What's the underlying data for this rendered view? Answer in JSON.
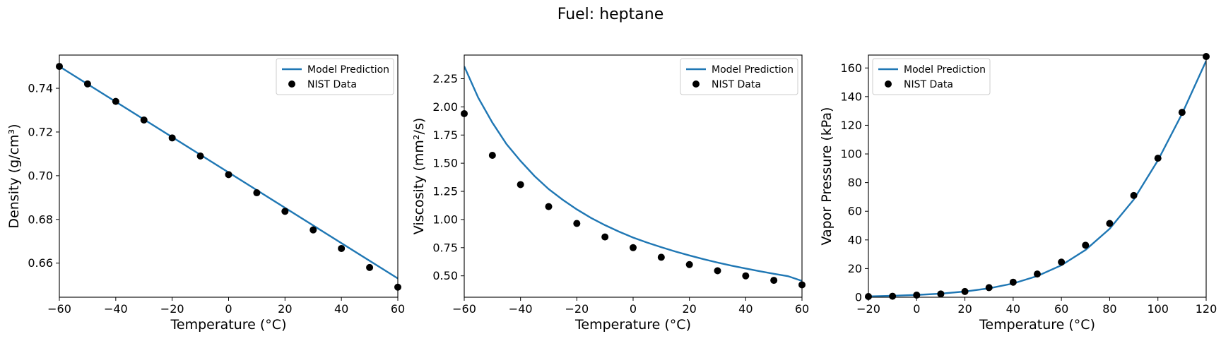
{
  "title": "Fuel: heptane",
  "chart_data": [
    {
      "type": "line",
      "xlabel": "Temperature (°C)",
      "ylabel": "Density (g/cm³)",
      "xlim": [
        -60,
        60
      ],
      "ylim": [
        0.6444,
        0.7552
      ],
      "xticks": [
        -60,
        -40,
        -20,
        0,
        20,
        40,
        60
      ],
      "yticks": [
        0.66,
        0.68,
        0.7,
        0.72,
        0.74
      ],
      "ytick_decimals": 2,
      "legend_position": "upper right",
      "grid": false,
      "series": [
        {
          "name": "Model Prediction",
          "kind": "line",
          "color": "#1f77b4",
          "x": [
            -60,
            60
          ],
          "y": [
            0.75,
            0.653
          ]
        },
        {
          "name": "NIST Data",
          "kind": "scatter",
          "color": "#000000",
          "x": [
            -60,
            -50,
            -40,
            -30,
            -20,
            -10,
            0,
            10,
            20,
            30,
            40,
            50,
            60
          ],
          "y": [
            0.75,
            0.742,
            0.734,
            0.7255,
            0.7173,
            0.709,
            0.7005,
            0.6922,
            0.6837,
            0.6752,
            0.6667,
            0.658,
            0.649
          ]
        }
      ]
    },
    {
      "type": "line",
      "xlabel": "Temperature (°C)",
      "ylabel": "Viscosity (mm²/s)",
      "xlim": [
        -60,
        60
      ],
      "ylim": [
        0.31,
        2.46
      ],
      "xticks": [
        -60,
        -40,
        -20,
        0,
        20,
        40,
        60
      ],
      "yticks": [
        0.5,
        0.75,
        1.0,
        1.25,
        1.5,
        1.75,
        2.0,
        2.25
      ],
      "ytick_decimals": 2,
      "legend_position": "upper right",
      "grid": false,
      "series": [
        {
          "name": "Model Prediction",
          "kind": "line",
          "color": "#1f77b4",
          "x": [
            -60,
            -55,
            -50,
            -45,
            -40,
            -35,
            -30,
            -25,
            -20,
            -15,
            -10,
            -5,
            0,
            5,
            10,
            15,
            20,
            25,
            30,
            35,
            40,
            45,
            50,
            55,
            60
          ],
          "y": [
            2.36,
            2.08,
            1.86,
            1.67,
            1.52,
            1.385,
            1.27,
            1.175,
            1.09,
            1.015,
            0.95,
            0.892,
            0.84,
            0.795,
            0.754,
            0.716,
            0.681,
            0.648,
            0.618,
            0.59,
            0.565,
            0.541,
            0.518,
            0.497,
            0.455
          ]
        },
        {
          "name": "NIST Data",
          "kind": "scatter",
          "color": "#000000",
          "x": [
            -60,
            -50,
            -40,
            -30,
            -20,
            -10,
            0,
            10,
            20,
            30,
            40,
            50,
            60
          ],
          "y": [
            1.94,
            1.57,
            1.31,
            1.115,
            0.965,
            0.845,
            0.75,
            0.665,
            0.6,
            0.545,
            0.5,
            0.46,
            0.42
          ]
        }
      ]
    },
    {
      "type": "line",
      "xlabel": "Temperature (°C)",
      "ylabel": "Vapor Pressure (kPa)",
      "xlim": [
        -20,
        120
      ],
      "ylim": [
        0,
        169
      ],
      "xticks": [
        -20,
        0,
        20,
        40,
        60,
        80,
        100,
        120
      ],
      "yticks": [
        0,
        20,
        40,
        60,
        80,
        100,
        120,
        140,
        160
      ],
      "ytick_decimals": 0,
      "legend_position": "upper left",
      "grid": false,
      "series": [
        {
          "name": "Model Prediction",
          "kind": "line",
          "color": "#1f77b4",
          "x": [
            -20,
            -10,
            0,
            10,
            20,
            30,
            40,
            50,
            60,
            70,
            80,
            90,
            100,
            110,
            120
          ],
          "y": [
            0.6,
            1.0,
            1.6,
            2.5,
            4.0,
            6.2,
            9.6,
            14.8,
            22.3,
            33.0,
            47.8,
            68.2,
            95.5,
            128.0,
            165.0
          ]
        },
        {
          "name": "NIST Data",
          "kind": "scatter",
          "color": "#000000",
          "x": [
            -20,
            -10,
            0,
            10,
            20,
            30,
            40,
            50,
            60,
            70,
            80,
            90,
            100,
            110,
            120
          ],
          "y": [
            0.5,
            0.7,
            1.5,
            2.3,
            4.0,
            6.7,
            10.5,
            16.2,
            24.5,
            36.3,
            51.5,
            71.0,
            97.0,
            129.0,
            168.0
          ]
        }
      ]
    }
  ]
}
